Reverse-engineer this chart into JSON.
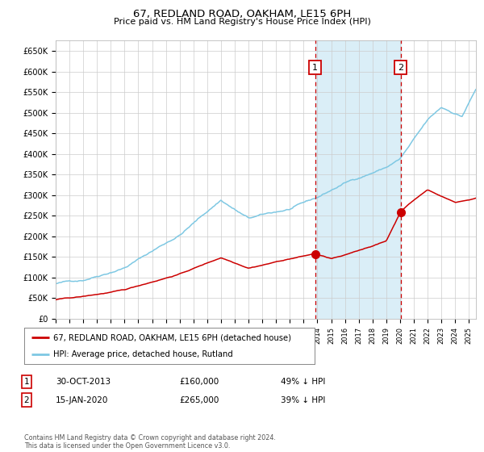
{
  "title": "67, REDLAND ROAD, OAKHAM, LE15 6PH",
  "subtitle": "Price paid vs. HM Land Registry's House Price Index (HPI)",
  "ylim": [
    0,
    675000
  ],
  "xlim_start": 1995.0,
  "xlim_end": 2025.5,
  "hpi_color": "#7ec8e3",
  "price_color": "#cc0000",
  "transaction1_date": 2013.83,
  "transaction1_price": 160000,
  "transaction2_date": 2020.04,
  "transaction2_price": 265000,
  "legend_line1": "67, REDLAND ROAD, OAKHAM, LE15 6PH (detached house)",
  "legend_line2": "HPI: Average price, detached house, Rutland",
  "table_row1_num": "1",
  "table_row1_date": "30-OCT-2013",
  "table_row1_price": "£160,000",
  "table_row1_hpi": "49% ↓ HPI",
  "table_row2_num": "2",
  "table_row2_date": "15-JAN-2020",
  "table_row2_price": "£265,000",
  "table_row2_hpi": "39% ↓ HPI",
  "footer": "Contains HM Land Registry data © Crown copyright and database right 2024.\nThis data is licensed under the Open Government Licence v3.0.",
  "background_color": "#ffffff",
  "shaded_region_color": "#daeef7"
}
